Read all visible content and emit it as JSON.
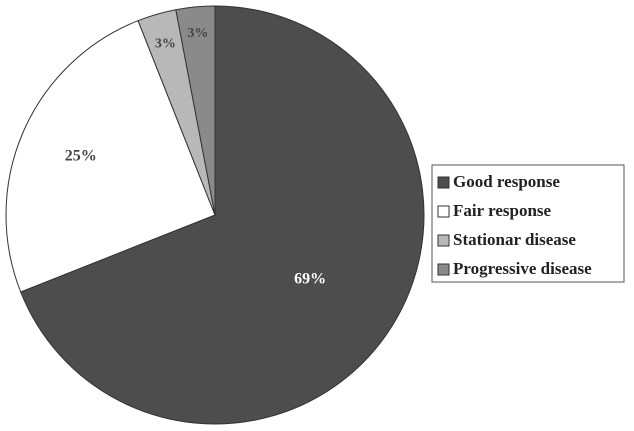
{
  "chart_data": {
    "type": "pie",
    "categories": [
      "Good response",
      "Fair response",
      "Stationar disease",
      "Progressive disease"
    ],
    "values": [
      69,
      25,
      3,
      3
    ],
    "value_labels": [
      "69%",
      "25%",
      "3%",
      "3%"
    ],
    "colors": [
      "#4d4d4d",
      "#ffffff",
      "#b8b8b8",
      "#8a8a8a"
    ],
    "legend": "right"
  }
}
